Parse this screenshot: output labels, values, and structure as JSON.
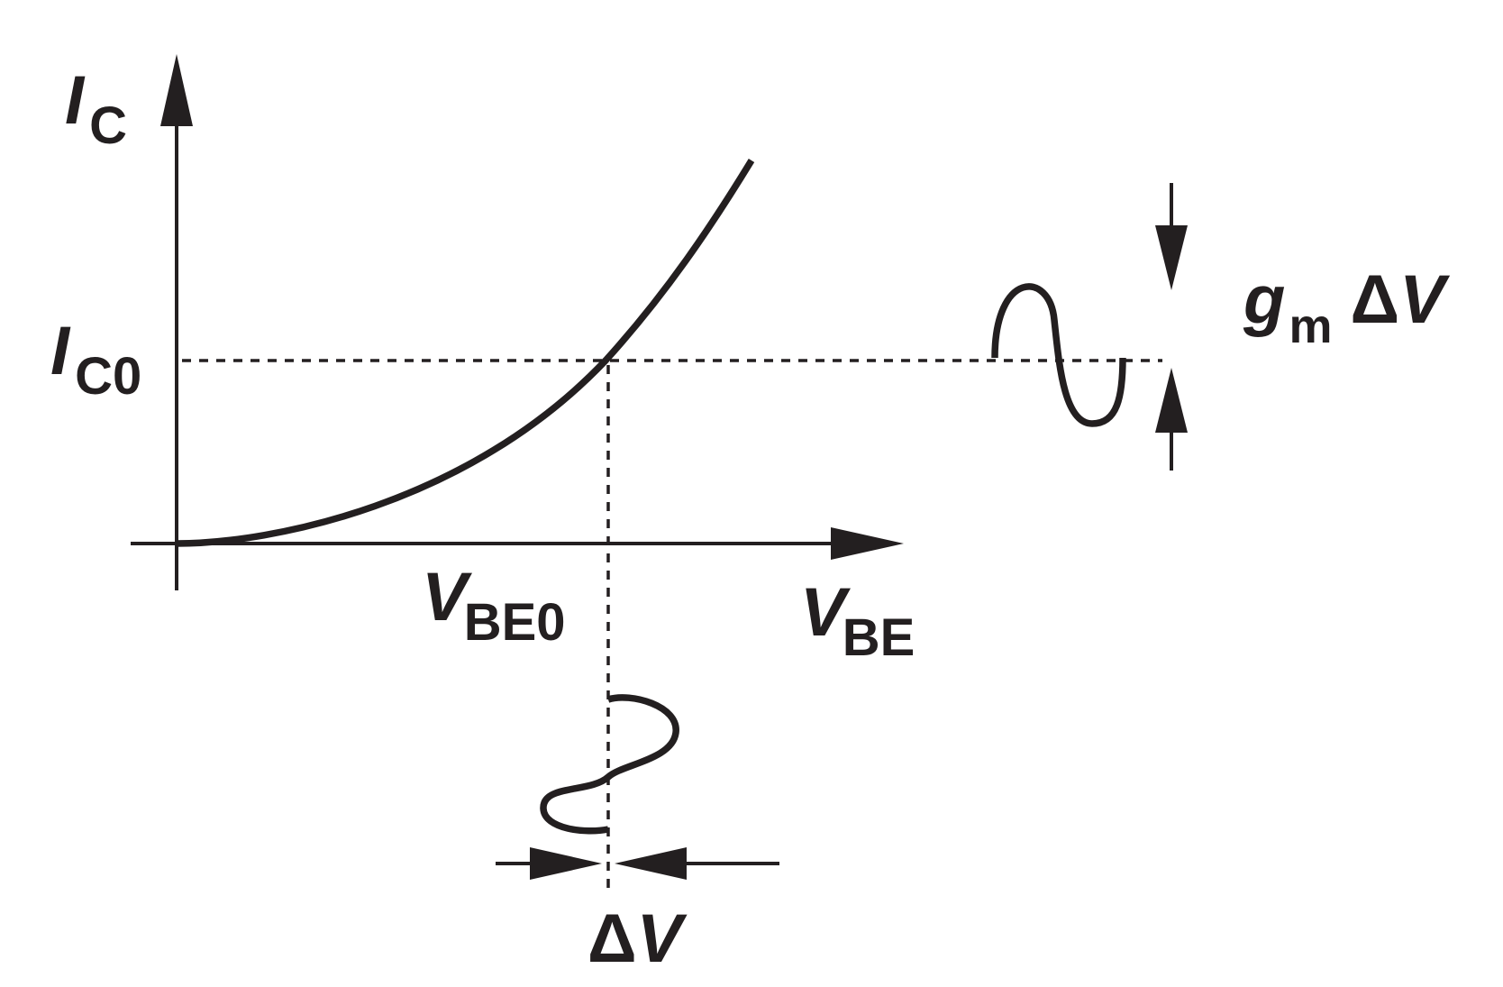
{
  "labels": {
    "y_axis": {
      "main": "I",
      "sub": "C"
    },
    "y_tick": {
      "main": "I",
      "sub": "C0"
    },
    "x_axis": {
      "main": "V",
      "sub": "BE"
    },
    "x_tick": {
      "main": "V",
      "sub": "BE0"
    },
    "output_swing": {
      "g": "g",
      "g_sub": "m",
      "delta": "Δ",
      "v": "V"
    },
    "input_swing": {
      "delta": "Δ",
      "v": "V"
    }
  },
  "colors": {
    "ink": "#231f20",
    "background": "#ffffff"
  }
}
